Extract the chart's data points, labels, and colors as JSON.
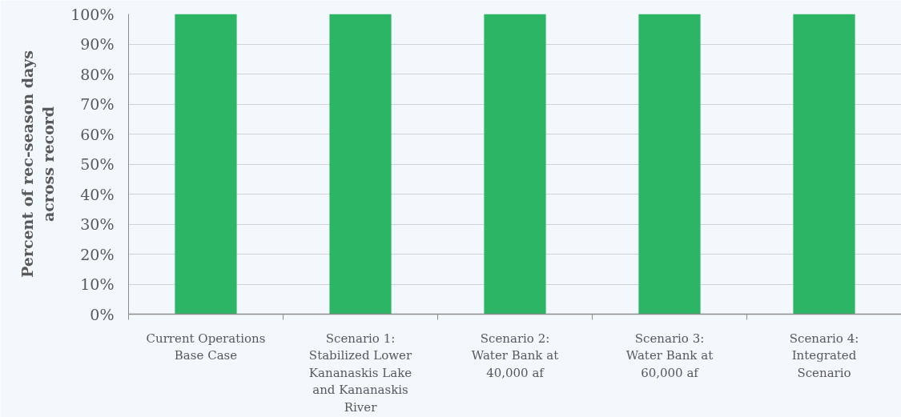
{
  "chart_data": {
    "type": "bar",
    "ylabel": "Percent of rec-season days across record",
    "categories": [
      "Current Operations Base Case",
      "Scenario 1: Stabilized Lower Kananaskis Lake and Kananaskis River",
      "Scenario 2: Water Bank at 40,000 af",
      "Scenario 3: Water Bank at 60,000 af",
      "Scenario 4: Integrated Scenario"
    ],
    "values": [
      100,
      100,
      100,
      100,
      100
    ],
    "color": "#2cb564",
    "ylim": [
      0,
      100
    ],
    "yticks": [
      {
        "value": 0,
        "label": "0%"
      },
      {
        "value": 10,
        "label": "10%"
      },
      {
        "value": 20,
        "label": "20%"
      },
      {
        "value": 30,
        "label": "30%"
      },
      {
        "value": 40,
        "label": "40%"
      },
      {
        "value": 50,
        "label": "50%"
      },
      {
        "value": 60,
        "label": "60%"
      },
      {
        "value": 70,
        "label": "70%"
      },
      {
        "value": 80,
        "label": "80%"
      },
      {
        "value": 90,
        "label": "90%"
      },
      {
        "value": 100,
        "label": "100%"
      }
    ],
    "grid": "y"
  }
}
